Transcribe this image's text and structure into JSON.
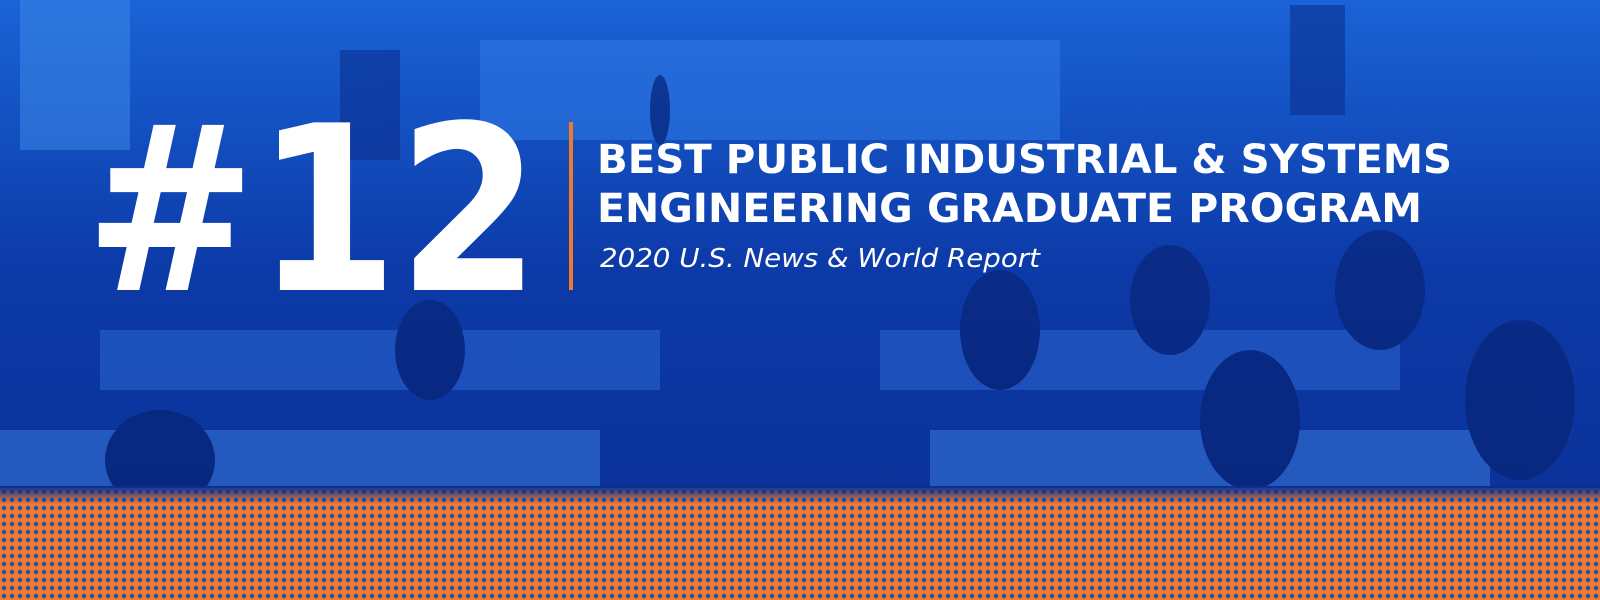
{
  "banner": {
    "rank": "#12",
    "headline": [
      "BEST PUBLIC INDUSTRIAL & SYSTEMS",
      "ENGINEERING GRADUATE PROGRAM"
    ],
    "source": "2020 U.S. News & World Report"
  }
}
